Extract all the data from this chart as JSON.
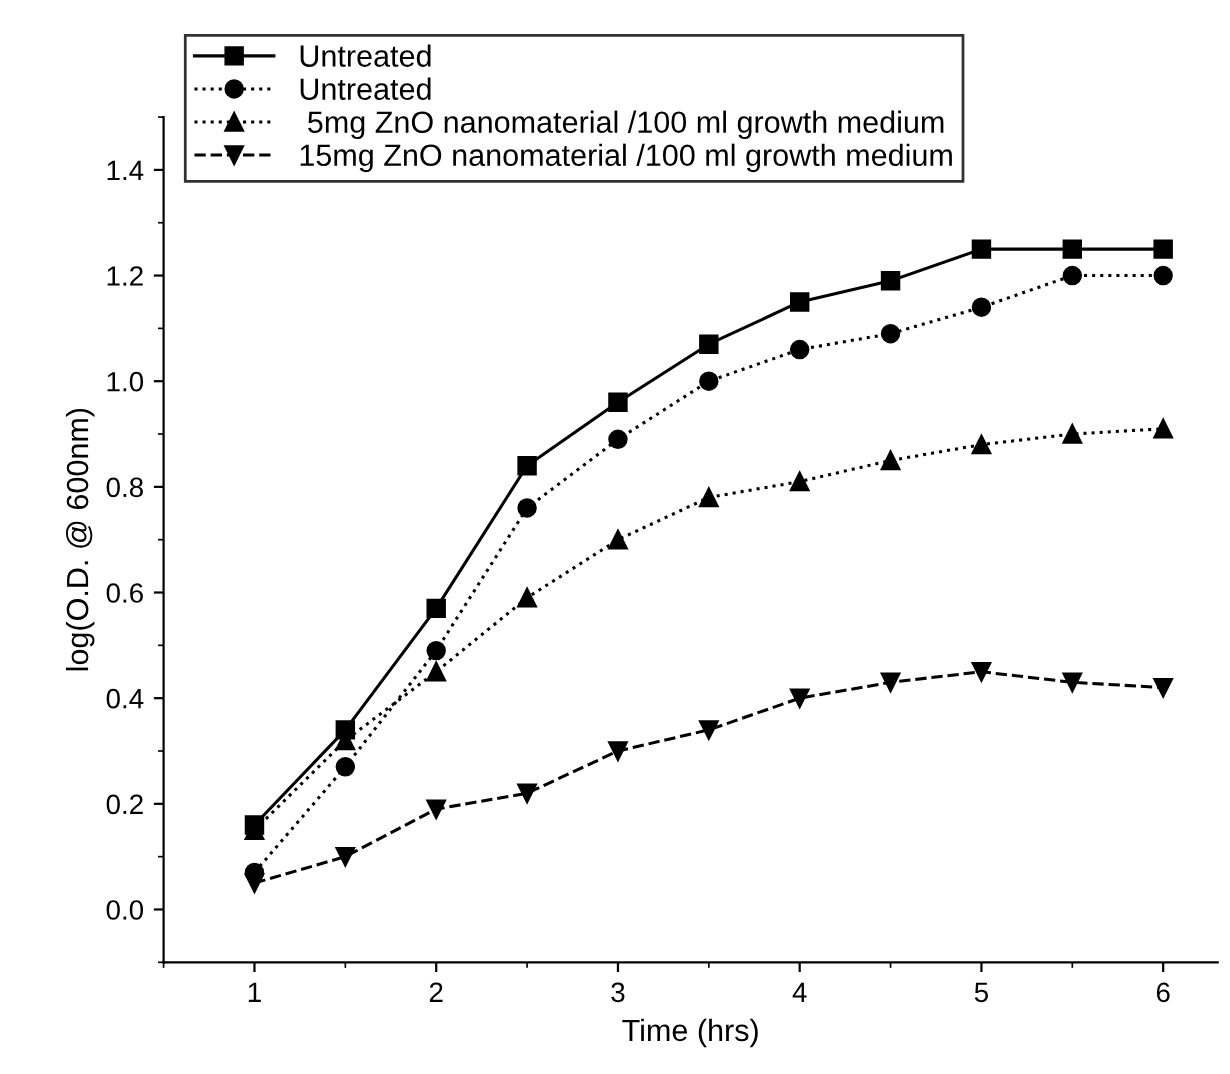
{
  "chart_data": {
    "type": "line",
    "xlabel": "Time (hrs)",
    "ylabel": "log(O.D. @ 600nm)",
    "x": [
      1,
      1.5,
      2,
      2.5,
      3,
      3.5,
      4,
      4.5,
      5,
      5.5,
      6
    ],
    "xlim": [
      0.5,
      6.3
    ],
    "xticks": [
      1,
      2,
      3,
      4,
      5,
      6
    ],
    "ylim": [
      -0.1,
      1.5
    ],
    "yticks": [
      {
        "value": 0,
        "label": "0.0"
      },
      0.2,
      0.4,
      0.6,
      0.8,
      {
        "value": 1,
        "label": "1.0"
      },
      1.2,
      1.4
    ],
    "grid": false,
    "legend": "top",
    "series": [
      {
        "name": "Untreated",
        "color": "#000000",
        "marker": "square",
        "line_style": "solid",
        "values": [
          0.16,
          0.34,
          0.57,
          0.84,
          0.96,
          1.07,
          1.15,
          1.19,
          1.25,
          1.25,
          1.25
        ]
      },
      {
        "name": "Untreated",
        "color": "#000000",
        "marker": "circle",
        "line_style": "dotted",
        "values": [
          0.07,
          0.27,
          0.49,
          0.76,
          0.89,
          1.0,
          1.06,
          1.09,
          1.14,
          1.2,
          1.2
        ]
      },
      {
        "name": " 5mg ZnO nanomaterial /100 ml growth medium",
        "color": "#000000",
        "marker": "triangle",
        "line_style": "dotted",
        "values": [
          0.15,
          0.32,
          0.45,
          0.59,
          0.7,
          0.78,
          0.81,
          0.85,
          0.88,
          0.9,
          0.91
        ]
      },
      {
        "name": "15mg ZnO nanomaterial /100 ml growth medium",
        "color": "#000000",
        "marker": "triangle_down",
        "line_style": "dashed",
        "values": [
          0.05,
          0.1,
          0.19,
          0.22,
          0.3,
          0.34,
          0.4,
          0.43,
          0.45,
          0.43,
          0.42
        ]
      }
    ]
  }
}
